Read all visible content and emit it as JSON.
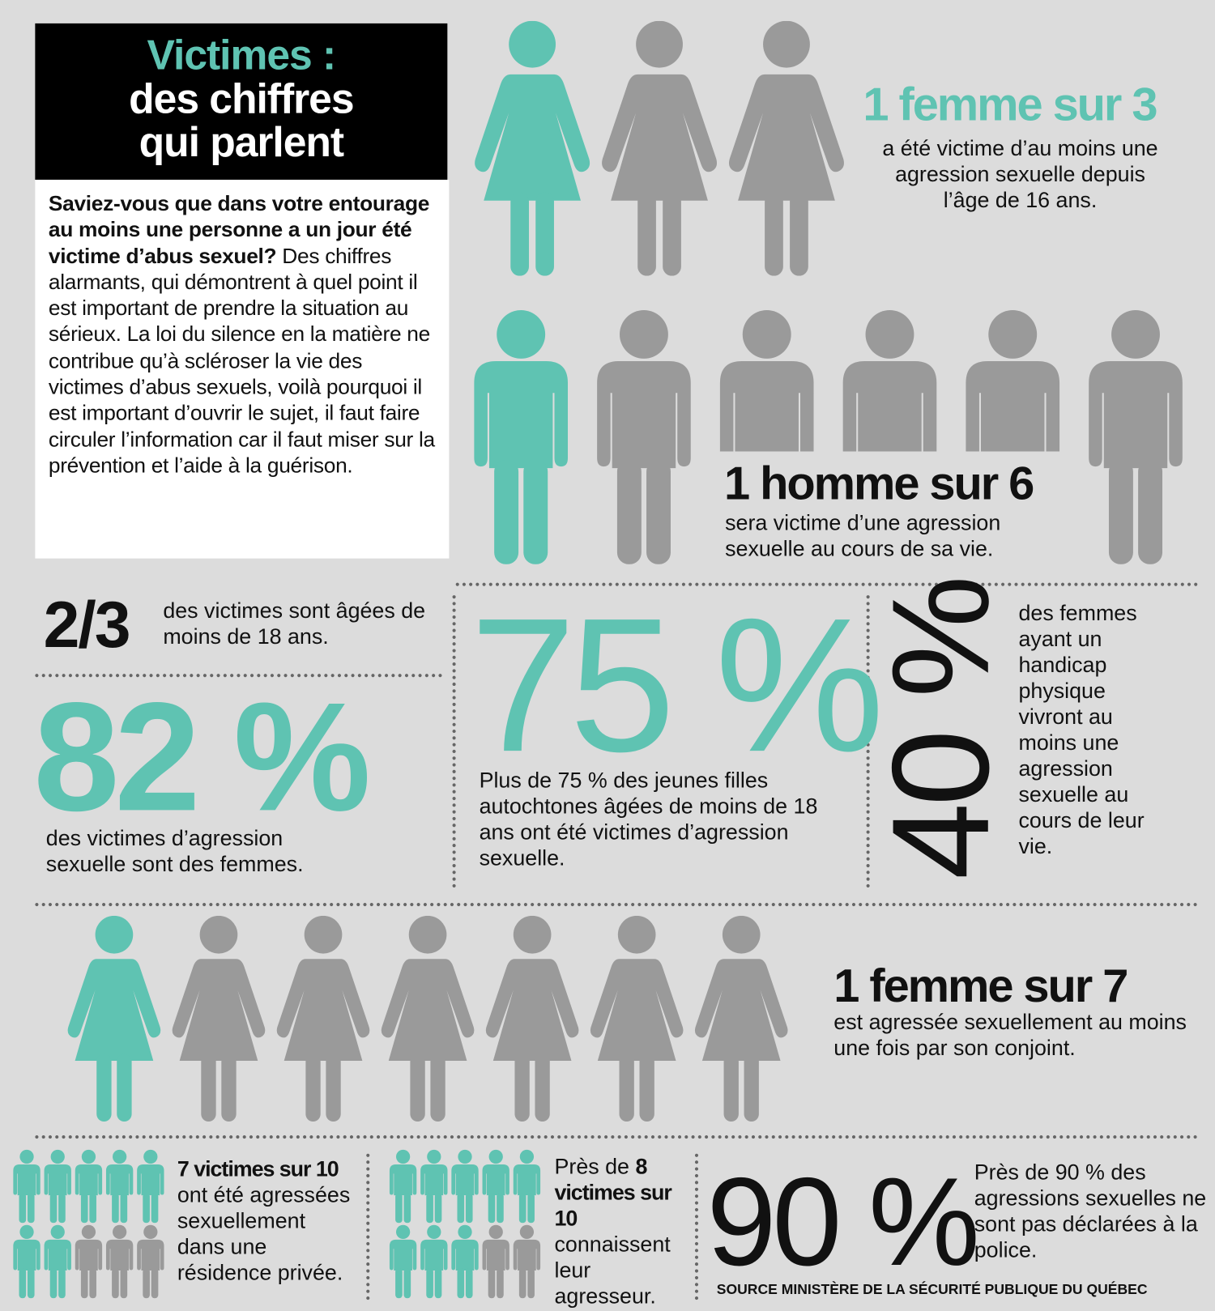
{
  "colors": {
    "accent": "#5fc3b2",
    "muted": "#9a9a9a",
    "background": "#dcdcdc"
  },
  "header": {
    "title_line1": "Victimes :",
    "title_line2": "des chiffres",
    "title_line3": "qui parlent"
  },
  "intro": {
    "bold": "Saviez-vous que dans votre entourage au moins une personne a un jour été victime d’abus sexuel?",
    "text": " Des chiffres alarmants, qui démontrent à quel point il est important de prendre la situation au sérieux. La loi du silence en la matière ne contribue qu’à scléroser la vie des victimes d’abus sexuels, voilà pourquoi il est important d’ouvrir le sujet, il faut faire circuler l’information car il faut miser sur la prévention et l’aide à la guérison."
  },
  "stat_women_3": {
    "headline": "1 femme sur 3",
    "text": "a été victime d’au moins une agression sexuelle depuis l’âge de 16 ans.",
    "icons": {
      "type": "woman",
      "total": 3,
      "highlighted": 1
    }
  },
  "stat_men_6": {
    "headline": "1 homme sur 6",
    "text": "sera victime d’une agression sexuelle au cours de sa vie.",
    "icons": {
      "type": "man",
      "total": 6,
      "highlighted": 1
    }
  },
  "stat_two_thirds": {
    "value": "2/3",
    "text": "des victimes sont âgées de moins de 18 ans."
  },
  "stat_82": {
    "value": "82 %",
    "text": "des victimes d’agression sexuelle sont des femmes."
  },
  "stat_75": {
    "value": "75 %",
    "text": "Plus de 75 % des jeunes filles autochtones âgées de moins de 18 ans ont été victimes d’agression sexuelle."
  },
  "stat_40": {
    "value": "40 %",
    "text": "des femmes ayant un handicap physique vivront au moins une agression sexuelle au cours de leur vie."
  },
  "stat_women_7": {
    "headline": "1 femme sur 7",
    "text": "est agressée sexuellement au moins une fois par son conjoint.",
    "icons": {
      "type": "woman",
      "total": 7,
      "highlighted": 1
    }
  },
  "stat_7_of_10": {
    "bold": "7 victimes sur 10",
    "text": " ont été agressées sexuellement dans une résidence privée.",
    "icons": {
      "type": "person",
      "total": 10,
      "highlighted": 7
    }
  },
  "stat_8_of_10": {
    "pre": "Près de ",
    "bold": "8 victimes sur 10",
    "text": " connaissent leur agresseur.",
    "icons": {
      "type": "person",
      "total": 10,
      "highlighted": 8
    }
  },
  "stat_90": {
    "value": "90 %",
    "text": "Près de 90 % des agressions sexuelles ne sont pas déclarées à la police."
  },
  "source": "SOURCE MINISTÈRE DE LA SÉCURITÉ PUBLIQUE DU QUÉBEC"
}
